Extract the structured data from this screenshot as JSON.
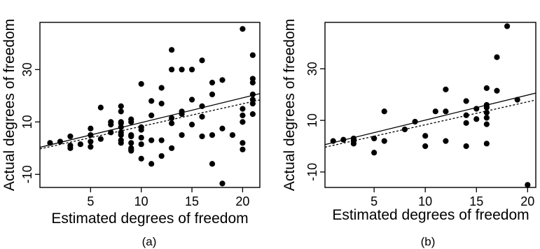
{
  "chart_data": [
    {
      "type": "scatter",
      "panel_label": "(a)",
      "xlabel": "Estimated degrees of freedom",
      "ylabel": "Actual degrees of freedom",
      "xlim": [
        0,
        21.7
      ],
      "ylim": [
        -15,
        48
      ],
      "xticks": [
        5,
        10,
        15,
        20
      ],
      "yticks": [
        -10,
        10,
        30
      ],
      "grid": false,
      "legend": "none",
      "points": [
        [
          1,
          2
        ],
        [
          2,
          2.5
        ],
        [
          3,
          1
        ],
        [
          3,
          0
        ],
        [
          3,
          4.5
        ],
        [
          4,
          1.5
        ],
        [
          5,
          5
        ],
        [
          5,
          2.5
        ],
        [
          5,
          0.5
        ],
        [
          5,
          7.5
        ],
        [
          6,
          3.5
        ],
        [
          6,
          15.5
        ],
        [
          7,
          6
        ],
        [
          7,
          9
        ],
        [
          7,
          10
        ],
        [
          8,
          16
        ],
        [
          8,
          14
        ],
        [
          8,
          10
        ],
        [
          8,
          8
        ],
        [
          8,
          9.5
        ],
        [
          8,
          6
        ],
        [
          8,
          5
        ],
        [
          8,
          3
        ],
        [
          8,
          2
        ],
        [
          9,
          11
        ],
        [
          9,
          10
        ],
        [
          9,
          5
        ],
        [
          9,
          4.5
        ],
        [
          9,
          2
        ],
        [
          9,
          0
        ],
        [
          9,
          -1
        ],
        [
          9,
          -0.5
        ],
        [
          10,
          24.5
        ],
        [
          10,
          8
        ],
        [
          10,
          7
        ],
        [
          10,
          4
        ],
        [
          10,
          1.5
        ],
        [
          10,
          -4
        ],
        [
          11,
          18
        ],
        [
          11,
          12.5
        ],
        [
          11,
          3
        ],
        [
          11,
          -6
        ],
        [
          12,
          23
        ],
        [
          12,
          17
        ],
        [
          12,
          3
        ],
        [
          12,
          -3
        ],
        [
          13,
          37.5
        ],
        [
          13,
          30
        ],
        [
          13,
          11.5
        ],
        [
          13,
          9.5
        ],
        [
          13,
          0
        ],
        [
          14,
          30
        ],
        [
          14,
          14
        ],
        [
          14,
          13
        ],
        [
          14,
          5
        ],
        [
          15,
          30
        ],
        [
          15,
          18.5
        ],
        [
          15,
          9
        ],
        [
          16,
          33.5
        ],
        [
          16,
          16
        ],
        [
          16,
          12
        ],
        [
          16,
          4.5
        ],
        [
          17,
          25
        ],
        [
          17,
          20.5
        ],
        [
          17,
          5
        ],
        [
          17,
          -6
        ],
        [
          18,
          26
        ],
        [
          18,
          7.5
        ],
        [
          18,
          -13.5
        ],
        [
          19,
          5
        ],
        [
          20,
          45.5
        ],
        [
          20,
          15
        ],
        [
          20,
          12.5
        ],
        [
          20,
          10
        ],
        [
          20,
          2
        ],
        [
          20,
          -0.5
        ],
        [
          21,
          35.5
        ],
        [
          21,
          26.5
        ],
        [
          21,
          25
        ],
        [
          21,
          20.5
        ],
        [
          21,
          18.5
        ],
        [
          21,
          17
        ],
        [
          21,
          13
        ]
      ],
      "lines": [
        {
          "style": "solid",
          "x": [
            0,
            21.7
          ],
          "y": [
            0.3,
            20.8
          ]
        },
        {
          "style": "dashed",
          "x": [
            0,
            21.7
          ],
          "y": [
            -0.3,
            18.4
          ]
        }
      ]
    },
    {
      "type": "scatter",
      "panel_label": "(b)",
      "xlabel": "Estimated degrees of freedom",
      "ylabel": "Actual degrees of freedom",
      "xlim": [
        0.2,
        20.8
      ],
      "ylim": [
        -16,
        48
      ],
      "xticks": [
        5,
        10,
        15,
        20
      ],
      "yticks": [
        -10,
        10,
        30
      ],
      "grid": false,
      "legend": "none",
      "points": [
        [
          1,
          2
        ],
        [
          2,
          2.5
        ],
        [
          3,
          3
        ],
        [
          3,
          2
        ],
        [
          3,
          1
        ],
        [
          5,
          3
        ],
        [
          5,
          -2.5
        ],
        [
          6,
          13.5
        ],
        [
          6,
          2
        ],
        [
          8,
          6.5
        ],
        [
          9,
          9.5
        ],
        [
          10,
          4
        ],
        [
          10,
          0
        ],
        [
          11,
          13.5
        ],
        [
          12,
          22
        ],
        [
          12,
          13.5
        ],
        [
          12,
          2
        ],
        [
          14,
          17.5
        ],
        [
          14,
          12
        ],
        [
          14,
          9
        ],
        [
          14,
          0
        ],
        [
          15,
          14.5
        ],
        [
          15,
          10.5
        ],
        [
          16,
          22.5
        ],
        [
          16,
          16
        ],
        [
          16,
          15
        ],
        [
          16,
          13
        ],
        [
          16,
          11
        ],
        [
          16,
          8.5
        ],
        [
          16,
          1
        ],
        [
          17,
          34.5
        ],
        [
          17,
          21.5
        ],
        [
          18,
          46.5
        ],
        [
          19,
          18
        ],
        [
          20,
          -15
        ]
      ],
      "lines": [
        {
          "style": "solid",
          "x": [
            0.2,
            20.8
          ],
          "y": [
            0.6,
            20.6
          ]
        },
        {
          "style": "dashed",
          "x": [
            0.2,
            20.8
          ],
          "y": [
            -0.4,
            17.9
          ]
        }
      ]
    }
  ]
}
